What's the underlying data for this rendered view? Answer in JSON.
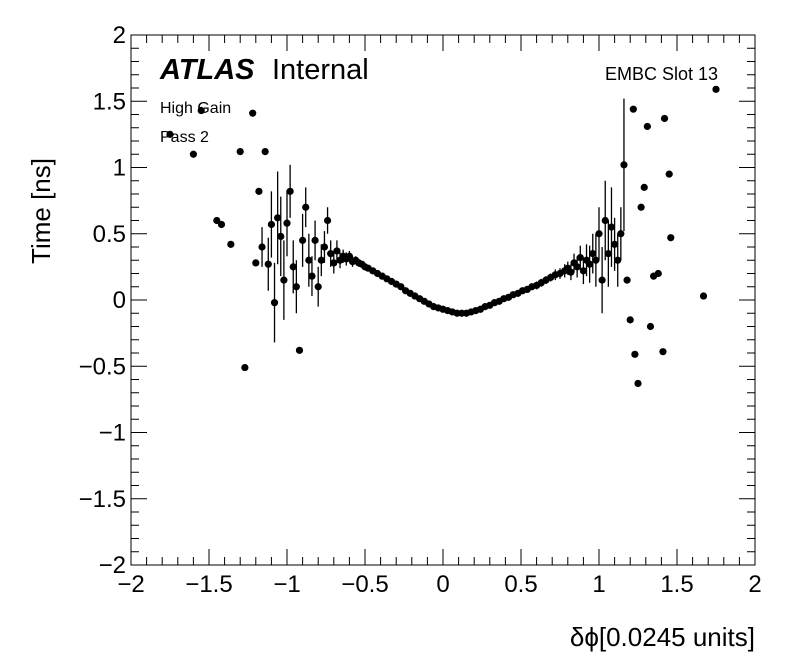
{
  "chart_data": {
    "type": "scatter",
    "title": "",
    "xlabel": "δϕ[0.0245 units]",
    "ylabel": "Time [ns]",
    "xlim": [
      -2,
      2
    ],
    "ylim": [
      -2,
      2
    ],
    "x_ticks": [
      -2,
      -1.5,
      -1,
      -0.5,
      0,
      0.5,
      1,
      1.5,
      2
    ],
    "y_ticks": [
      -2,
      -1.5,
      -1,
      -0.5,
      0,
      0.5,
      1,
      1.5,
      2
    ],
    "x_tick_labels": [
      "−2",
      "−1.5",
      "−1",
      "−0.5",
      "0",
      "0.5",
      "1",
      "1.5",
      "2"
    ],
    "y_tick_labels": [
      "−2",
      "−1.5",
      "−1",
      "−0.5",
      "0",
      "0.5",
      "1",
      "1.5",
      "2"
    ],
    "annotations": {
      "atlas": "ATLAS",
      "internal": "Internal",
      "gain": "High Gain",
      "pass": "Pass 2",
      "slot": "EMBC Slot 13"
    },
    "series": [
      {
        "name": "points",
        "points": [
          {
            "x": -1.75,
            "y": 1.25,
            "err": 0
          },
          {
            "x": -1.6,
            "y": 1.1,
            "err": 0
          },
          {
            "x": -1.55,
            "y": 1.43,
            "err": 0
          },
          {
            "x": -1.45,
            "y": 0.6,
            "err": 0
          },
          {
            "x": -1.42,
            "y": 0.57,
            "err": 0
          },
          {
            "x": -1.36,
            "y": 0.42,
            "err": 0
          },
          {
            "x": -1.3,
            "y": 1.12,
            "err": 0
          },
          {
            "x": -1.27,
            "y": -0.51,
            "err": 0
          },
          {
            "x": -1.22,
            "y": 1.41,
            "err": 0
          },
          {
            "x": -1.2,
            "y": 0.28,
            "err": 0
          },
          {
            "x": -1.18,
            "y": 0.82,
            "err": 0
          },
          {
            "x": -1.16,
            "y": 0.4,
            "err": 0.15
          },
          {
            "x": -1.14,
            "y": 1.12,
            "err": 0
          },
          {
            "x": -1.12,
            "y": 0.27,
            "err": 0.2
          },
          {
            "x": -1.1,
            "y": 0.57,
            "err": 0.25
          },
          {
            "x": -1.08,
            "y": -0.02,
            "err": 0.3
          },
          {
            "x": -1.06,
            "y": 0.62,
            "err": 0.35
          },
          {
            "x": -1.04,
            "y": 0.48,
            "err": 0.3
          },
          {
            "x": -1.02,
            "y": 0.15,
            "err": 0.3
          },
          {
            "x": -1.0,
            "y": 0.58,
            "err": 0.25
          },
          {
            "x": -0.98,
            "y": 0.82,
            "err": 0.2
          },
          {
            "x": -0.96,
            "y": 0.25,
            "err": 0.2
          },
          {
            "x": -0.94,
            "y": 0.1,
            "err": 0.2
          },
          {
            "x": -0.92,
            "y": -0.38,
            "err": 0
          },
          {
            "x": -0.9,
            "y": 0.45,
            "err": 0.2
          },
          {
            "x": -0.88,
            "y": 0.7,
            "err": 0.15
          },
          {
            "x": -0.86,
            "y": 0.3,
            "err": 0.2
          },
          {
            "x": -0.84,
            "y": 0.18,
            "err": 0.15
          },
          {
            "x": -0.82,
            "y": 0.45,
            "err": 0.15
          },
          {
            "x": -0.8,
            "y": 0.1,
            "err": 0.15
          },
          {
            "x": -0.78,
            "y": 0.3,
            "err": 0.12
          },
          {
            "x": -0.76,
            "y": 0.4,
            "err": 0.12
          },
          {
            "x": -0.74,
            "y": 0.6,
            "err": 0.1
          },
          {
            "x": -0.72,
            "y": 0.35,
            "err": 0.1
          },
          {
            "x": -0.7,
            "y": 0.28,
            "err": 0.08
          },
          {
            "x": -0.68,
            "y": 0.37,
            "err": 0.08
          },
          {
            "x": -0.66,
            "y": 0.3,
            "err": 0.06
          },
          {
            "x": -0.64,
            "y": 0.33,
            "err": 0.05
          },
          {
            "x": -0.62,
            "y": 0.31,
            "err": 0.05
          },
          {
            "x": -0.6,
            "y": 0.33,
            "err": 0.04
          },
          {
            "x": -0.58,
            "y": 0.29,
            "err": 0.04
          },
          {
            "x": -0.56,
            "y": 0.3,
            "err": 0.03
          },
          {
            "x": -0.54,
            "y": 0.28,
            "err": 0.03
          },
          {
            "x": -0.52,
            "y": 0.27,
            "err": 0.02
          },
          {
            "x": -0.5,
            "y": 0.25,
            "err": 0.02
          },
          {
            "x": -0.48,
            "y": 0.24,
            "err": 0.02
          },
          {
            "x": -0.45,
            "y": 0.22,
            "err": 0.02
          },
          {
            "x": -0.42,
            "y": 0.2,
            "err": 0.02
          },
          {
            "x": -0.39,
            "y": 0.18,
            "err": 0.02
          },
          {
            "x": -0.36,
            "y": 0.16,
            "err": 0.02
          },
          {
            "x": -0.33,
            "y": 0.14,
            "err": 0.02
          },
          {
            "x": -0.3,
            "y": 0.12,
            "err": 0.02
          },
          {
            "x": -0.27,
            "y": 0.1,
            "err": 0.02
          },
          {
            "x": -0.24,
            "y": 0.07,
            "err": 0.02
          },
          {
            "x": -0.21,
            "y": 0.05,
            "err": 0.02
          },
          {
            "x": -0.18,
            "y": 0.03,
            "err": 0.02
          },
          {
            "x": -0.15,
            "y": 0.01,
            "err": 0.02
          },
          {
            "x": -0.12,
            "y": -0.01,
            "err": 0.02
          },
          {
            "x": -0.09,
            "y": -0.03,
            "err": 0.02
          },
          {
            "x": -0.06,
            "y": -0.05,
            "err": 0.02
          },
          {
            "x": -0.03,
            "y": -0.06,
            "err": 0.02
          },
          {
            "x": 0.0,
            "y": -0.07,
            "err": 0.02
          },
          {
            "x": 0.03,
            "y": -0.08,
            "err": 0.02
          },
          {
            "x": 0.06,
            "y": -0.09,
            "err": 0.02
          },
          {
            "x": 0.09,
            "y": -0.1,
            "err": 0.02
          },
          {
            "x": 0.12,
            "y": -0.1,
            "err": 0.02
          },
          {
            "x": 0.15,
            "y": -0.1,
            "err": 0.02
          },
          {
            "x": 0.18,
            "y": -0.09,
            "err": 0.02
          },
          {
            "x": 0.21,
            "y": -0.08,
            "err": 0.02
          },
          {
            "x": 0.24,
            "y": -0.07,
            "err": 0.02
          },
          {
            "x": 0.27,
            "y": -0.05,
            "err": 0.02
          },
          {
            "x": 0.3,
            "y": -0.04,
            "err": 0.02
          },
          {
            "x": 0.33,
            "y": -0.02,
            "err": 0.02
          },
          {
            "x": 0.36,
            "y": -0.01,
            "err": 0.02
          },
          {
            "x": 0.39,
            "y": 0.01,
            "err": 0.02
          },
          {
            "x": 0.42,
            "y": 0.02,
            "err": 0.02
          },
          {
            "x": 0.45,
            "y": 0.04,
            "err": 0.02
          },
          {
            "x": 0.48,
            "y": 0.05,
            "err": 0.02
          },
          {
            "x": 0.51,
            "y": 0.07,
            "err": 0.02
          },
          {
            "x": 0.54,
            "y": 0.08,
            "err": 0.02
          },
          {
            "x": 0.57,
            "y": 0.1,
            "err": 0.02
          },
          {
            "x": 0.6,
            "y": 0.11,
            "err": 0.03
          },
          {
            "x": 0.63,
            "y": 0.13,
            "err": 0.03
          },
          {
            "x": 0.66,
            "y": 0.15,
            "err": 0.03
          },
          {
            "x": 0.69,
            "y": 0.17,
            "err": 0.03
          },
          {
            "x": 0.72,
            "y": 0.19,
            "err": 0.04
          },
          {
            "x": 0.75,
            "y": 0.2,
            "err": 0.04
          },
          {
            "x": 0.78,
            "y": 0.22,
            "err": 0.05
          },
          {
            "x": 0.8,
            "y": 0.24,
            "err": 0.05
          },
          {
            "x": 0.82,
            "y": 0.21,
            "err": 0.06
          },
          {
            "x": 0.84,
            "y": 0.28,
            "err": 0.07
          },
          {
            "x": 0.86,
            "y": 0.25,
            "err": 0.08
          },
          {
            "x": 0.88,
            "y": 0.32,
            "err": 0.09
          },
          {
            "x": 0.9,
            "y": 0.22,
            "err": 0.1
          },
          {
            "x": 0.92,
            "y": 0.3,
            "err": 0.12
          },
          {
            "x": 0.94,
            "y": 0.27,
            "err": 0.14
          },
          {
            "x": 0.96,
            "y": 0.35,
            "err": 0.15
          },
          {
            "x": 0.98,
            "y": 0.3,
            "err": 0.2
          },
          {
            "x": 1.0,
            "y": 0.5,
            "err": 0.2
          },
          {
            "x": 1.02,
            "y": 0.15,
            "err": 0.25
          },
          {
            "x": 1.04,
            "y": 0.6,
            "err": 0.3
          },
          {
            "x": 1.06,
            "y": 0.35,
            "err": 0.25
          },
          {
            "x": 1.08,
            "y": 0.55,
            "err": 0.3
          },
          {
            "x": 1.1,
            "y": 0.42,
            "err": 0.2
          },
          {
            "x": 1.12,
            "y": 0.3,
            "err": 0.2
          },
          {
            "x": 1.14,
            "y": 0.5,
            "err": 0.2
          },
          {
            "x": 1.16,
            "y": 1.02,
            "err": 0.5
          },
          {
            "x": 1.18,
            "y": 0.15,
            "err": 0
          },
          {
            "x": 1.2,
            "y": -0.15,
            "err": 0
          },
          {
            "x": 1.22,
            "y": 1.44,
            "err": 0
          },
          {
            "x": 1.23,
            "y": -0.41,
            "err": 0
          },
          {
            "x": 1.25,
            "y": -0.63,
            "err": 0
          },
          {
            "x": 1.27,
            "y": 0.7,
            "err": 0
          },
          {
            "x": 1.29,
            "y": 0.85,
            "err": 0
          },
          {
            "x": 1.31,
            "y": 1.31,
            "err": 0
          },
          {
            "x": 1.33,
            "y": -0.2,
            "err": 0
          },
          {
            "x": 1.35,
            "y": 0.18,
            "err": 0
          },
          {
            "x": 1.38,
            "y": 0.2,
            "err": 0
          },
          {
            "x": 1.41,
            "y": -0.39,
            "err": 0
          },
          {
            "x": 1.42,
            "y": 1.37,
            "err": 0
          },
          {
            "x": 1.45,
            "y": 0.95,
            "err": 0
          },
          {
            "x": 1.46,
            "y": 0.47,
            "err": 0
          },
          {
            "x": 1.67,
            "y": 0.03,
            "err": 0
          },
          {
            "x": 1.75,
            "y": 1.59,
            "err": 0
          }
        ]
      }
    ]
  }
}
